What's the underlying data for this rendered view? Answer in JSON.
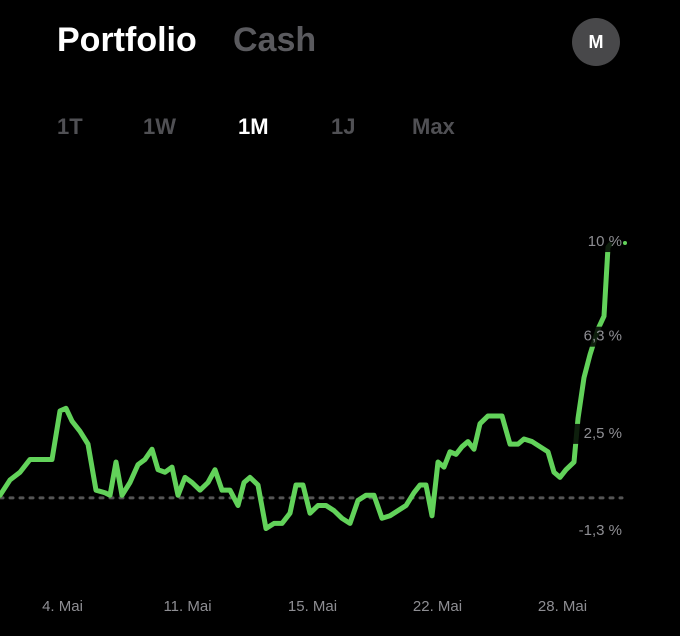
{
  "header": {
    "tabs": [
      "Portfolio",
      "Cash"
    ],
    "selected_tab": 0,
    "avatar": "M"
  },
  "range_tabs": {
    "items": [
      "1T",
      "1W",
      "1M",
      "1J",
      "Max"
    ],
    "selected": 2
  },
  "chart_data": {
    "type": "line",
    "x": [
      0,
      0.4,
      0.8,
      1.2,
      1.6,
      2.08,
      2.4,
      2.64,
      2.88,
      3.2,
      3.52,
      3.84,
      4.2,
      4.4,
      4.64,
      4.88,
      5.2,
      5.52,
      5.8,
      6.08,
      6.32,
      6.6,
      6.88,
      7.12,
      7.4,
      7.68,
      8,
      8.32,
      8.6,
      8.88,
      9.2,
      9.52,
      9.76,
      10,
      10.32,
      10.64,
      10.96,
      11.28,
      11.6,
      11.84,
      12.12,
      12.4,
      12.72,
      13.04,
      13.36,
      13.68,
      14,
      14.32,
      14.64,
      14.96,
      15.28,
      15.6,
      15.92,
      16.24,
      16.56,
      16.8,
      17.04,
      17.28,
      17.52,
      17.76,
      18,
      18.24,
      18.48,
      18.72,
      18.96,
      19.2,
      19.52,
      19.84,
      20.08,
      20.4,
      20.72,
      20.96,
      21.28,
      21.6,
      21.92,
      22.16,
      22.4,
      22.64,
      22.96,
      23.12,
      23.36,
      23.6,
      23.92,
      24.16,
      24.32,
      24.4
    ],
    "series": [
      {
        "color": "#62d25a",
        "values": [
          0.1,
          0.7,
          1.0,
          1.5,
          1.5,
          1.5,
          3.4,
          3.5,
          3.0,
          2.6,
          2.1,
          0.3,
          0.2,
          0.1,
          1.4,
          0.1,
          0.6,
          1.3,
          1.5,
          1.9,
          1.1,
          1.0,
          1.2,
          0.1,
          0.8,
          0.6,
          0.3,
          0.6,
          1.1,
          0.3,
          0.3,
          -0.3,
          0.6,
          0.8,
          0.5,
          -1.2,
          -1.0,
          -1.0,
          -0.6,
          0.5,
          0.5,
          -0.6,
          -0.3,
          -0.3,
          -0.5,
          -0.8,
          -1.0,
          -0.1,
          0.1,
          0.1,
          -0.8,
          -0.7,
          -0.5,
          -0.3,
          0.2,
          0.5,
          0.5,
          -0.7,
          1.4,
          1.2,
          1.8,
          1.7,
          2.0,
          2.2,
          1.9,
          2.9,
          3.2,
          3.2,
          3.2,
          2.1,
          2.1,
          2.3,
          2.2,
          2.0,
          1.8,
          1.0,
          0.8,
          1.1,
          1.4,
          3.1,
          4.7,
          5.6,
          6.6,
          7.1,
          9.8,
          9.9
        ]
      }
    ],
    "xlim": [
      0,
      24.4
    ],
    "xticks": [
      {
        "value": 2.5,
        "label": "4. Mai"
      },
      {
        "value": 7.5,
        "label": "11. Mai"
      },
      {
        "value": 12.5,
        "label": "15. Mai"
      },
      {
        "value": 17.5,
        "label": "22. Mai"
      },
      {
        "value": 22.5,
        "label": "28. Mai"
      }
    ],
    "ylim": [
      -2.43,
      10.51
    ],
    "yticks": [
      {
        "value": 10,
        "label": "10 %"
      },
      {
        "value": 6.3,
        "label": "6,3 %"
      },
      {
        "value": 2.5,
        "label": "2,5 %"
      },
      {
        "value": -1.3,
        "label": "-1,3 %"
      }
    ],
    "reference_line": 0
  }
}
